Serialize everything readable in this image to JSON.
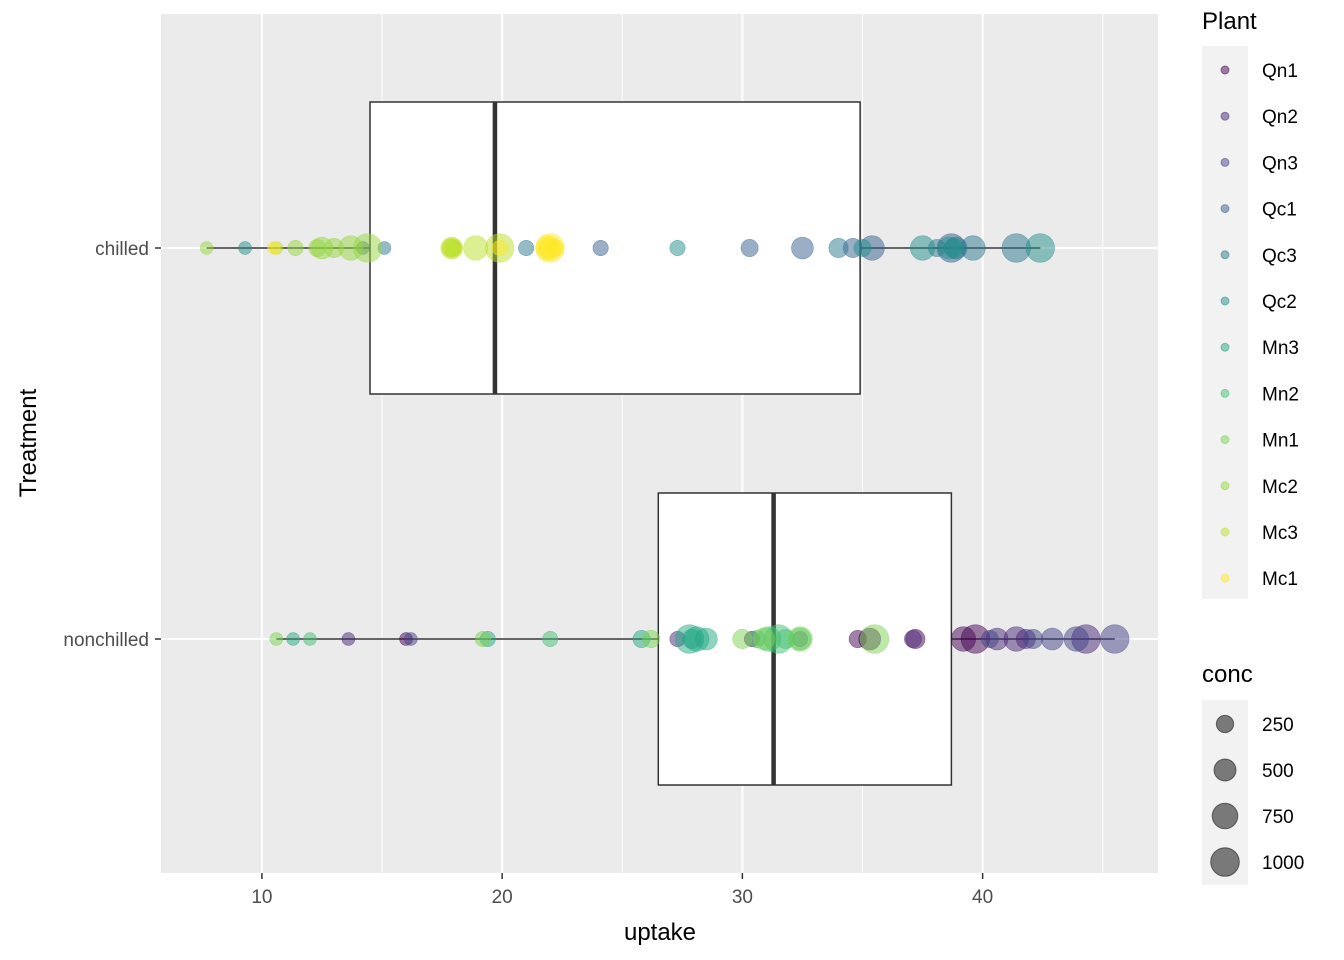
{
  "chart_data": {
    "type": "scatter",
    "subtype": "boxplot with jittered bubble points",
    "title": "",
    "xlabel": "uptake",
    "ylabel": "Treatment",
    "xlim": [
      5.8,
      47.3
    ],
    "x_ticks": [
      10,
      20,
      30,
      40
    ],
    "x_tick_labels": [
      "10",
      "20",
      "30",
      "40"
    ],
    "categories": [
      "chilled",
      "nonchilled"
    ],
    "grid": true,
    "legend_position": "right",
    "colors": {
      "panel_background": "#EBEBEB",
      "grid": "#FFFFFF",
      "box_fill": "#FFFFFF",
      "box_line": "#333333"
    },
    "boxes": [
      {
        "category": "chilled",
        "min": 7.7,
        "q1": 14.5,
        "median": 19.7,
        "q3": 34.9,
        "max": 42.4
      },
      {
        "category": "nonchilled",
        "min": 10.6,
        "q1": 26.5,
        "median": 31.3,
        "q3": 38.7,
        "max": 45.5
      }
    ],
    "legend_plant": {
      "title": "Plant",
      "items": [
        {
          "label": "Qn1",
          "color": "#440154"
        },
        {
          "label": "Qn2",
          "color": "#482576"
        },
        {
          "label": "Qn3",
          "color": "#414487"
        },
        {
          "label": "Qc1",
          "color": "#35608D"
        },
        {
          "label": "Qc3",
          "color": "#2A788E"
        },
        {
          "label": "Qc2",
          "color": "#21908C"
        },
        {
          "label": "Mn3",
          "color": "#22A884"
        },
        {
          "label": "Mn2",
          "color": "#43BF71"
        },
        {
          "label": "Mn1",
          "color": "#7AD151"
        },
        {
          "label": "Mc2",
          "color": "#95D840"
        },
        {
          "label": "Mc3",
          "color": "#BBDF27"
        },
        {
          "label": "Mc1",
          "color": "#FDE725"
        }
      ]
    },
    "legend_conc": {
      "title": "conc",
      "items": [
        {
          "label": "250",
          "value": 250
        },
        {
          "label": "500",
          "value": 500
        },
        {
          "label": "750",
          "value": 750
        },
        {
          "label": "1000",
          "value": 1000
        }
      ]
    },
    "series": [
      {
        "name": "Qn1",
        "category": "nonchilled",
        "x": [
          16.0,
          30.4,
          34.8,
          37.2,
          35.3,
          39.2,
          39.7
        ],
        "conc": [
          95,
          175,
          250,
          350,
          500,
          675,
          1000
        ]
      },
      {
        "name": "Qn2",
        "category": "nonchilled",
        "x": [
          13.6,
          27.3,
          37.1,
          41.8,
          40.6,
          41.4,
          44.3
        ],
        "conc": [
          95,
          175,
          250,
          350,
          500,
          675,
          1000
        ]
      },
      {
        "name": "Qn3",
        "category": "nonchilled",
        "x": [
          16.2,
          32.4,
          40.3,
          42.1,
          42.9,
          43.9,
          45.5
        ],
        "conc": [
          95,
          175,
          250,
          350,
          500,
          675,
          1000
        ]
      },
      {
        "name": "Qc1",
        "category": "chilled",
        "x": [
          14.2,
          24.1,
          30.3,
          34.6,
          32.5,
          35.4,
          38.7
        ],
        "conc": [
          95,
          175,
          250,
          350,
          500,
          675,
          1000
        ]
      },
      {
        "name": "Qc3",
        "category": "chilled",
        "x": [
          15.1,
          21.0,
          38.1,
          34.0,
          38.9,
          39.6,
          41.4
        ],
        "conc": [
          95,
          175,
          250,
          350,
          500,
          675,
          1000
        ]
      },
      {
        "name": "Qc2",
        "category": "chilled",
        "x": [
          9.3,
          27.3,
          35.0,
          38.8,
          38.6,
          37.5,
          42.4
        ],
        "conc": [
          95,
          175,
          250,
          350,
          500,
          675,
          1000
        ]
      },
      {
        "name": "Mn3",
        "category": "nonchilled",
        "x": [
          11.3,
          19.4,
          25.8,
          27.9,
          28.5,
          28.1,
          27.8
        ],
        "conc": [
          95,
          175,
          250,
          350,
          500,
          675,
          1000
        ]
      },
      {
        "name": "Mn2",
        "category": "nonchilled",
        "x": [
          12.0,
          22.0,
          30.6,
          31.8,
          32.4,
          31.1,
          31.5
        ],
        "conc": [
          95,
          175,
          250,
          350,
          500,
          675,
          1000
        ]
      },
      {
        "name": "Mn1",
        "category": "nonchilled",
        "x": [
          10.6,
          19.2,
          26.2,
          30.0,
          30.9,
          32.4,
          35.5
        ],
        "conc": [
          95,
          175,
          250,
          350,
          500,
          675,
          1000
        ]
      },
      {
        "name": "Mc2",
        "category": "chilled",
        "x": [
          7.7,
          11.4,
          12.3,
          13.0,
          12.5,
          13.7,
          14.4
        ],
        "conc": [
          95,
          175,
          250,
          350,
          500,
          675,
          1000
        ]
      },
      {
        "name": "Mc3",
        "category": "chilled",
        "x": [
          10.6,
          18.0,
          17.9,
          17.9,
          17.9,
          18.9,
          19.9
        ],
        "conc": [
          95,
          175,
          250,
          350,
          500,
          675,
          1000
        ]
      },
      {
        "name": "Mc1",
        "category": "chilled",
        "x": [
          10.5,
          19.9,
          22.2,
          21.9,
          22.0,
          21.9,
          22.0
        ],
        "conc": [
          95,
          175,
          250,
          350,
          500,
          675,
          1000
        ]
      }
    ]
  }
}
